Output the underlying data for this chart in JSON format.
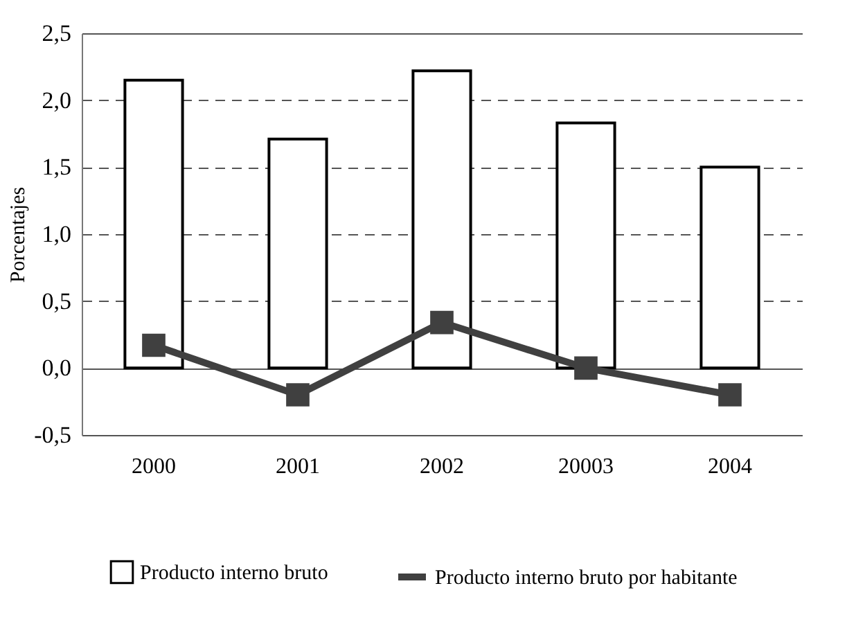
{
  "chart_data": {
    "type": "bar",
    "ylabel": "Porcentajes",
    "categories": [
      "2000",
      "2001",
      "2002",
      "20003",
      "2004"
    ],
    "series": [
      {
        "name": "Producto interno bruto",
        "color": "#ffffff",
        "values": [
          2.15,
          1.71,
          2.22,
          1.83,
          1.5
        ]
      },
      {
        "name": "Producto interno bruto por habitante",
        "type": "line",
        "color": "#404040",
        "values": [
          0.17,
          -0.2,
          0.34,
          0.0,
          -0.2
        ]
      }
    ],
    "ylim": [
      -0.5,
      2.5
    ],
    "yticks": [
      {
        "value": -0.5,
        "label": "-0,5"
      },
      {
        "value": 0,
        "label": "0,0"
      },
      {
        "value": 0.5,
        "label": "0,5"
      },
      {
        "value": 1,
        "label": "1,0"
      },
      {
        "value": 1.5,
        "label": "1,5"
      },
      {
        "value": 2,
        "label": "2,0"
      },
      {
        "value": 2.5,
        "label": "2,5"
      }
    ],
    "grid": "y",
    "legend": "bottom",
    "marker": "square",
    "line_style": "solid"
  }
}
